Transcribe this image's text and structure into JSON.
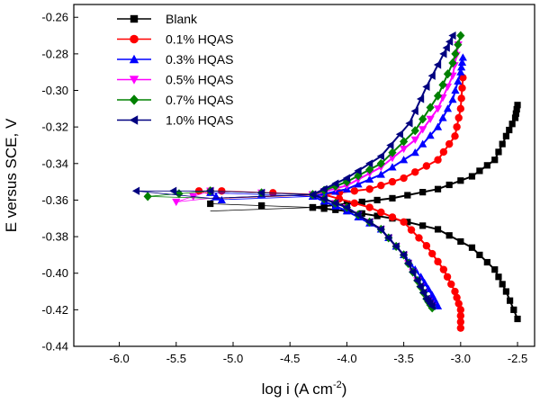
{
  "chart_data": {
    "type": "scatter",
    "xlabel_base": "log i (A cm",
    "xlabel_sup": "-2",
    "xlabel_end": ")",
    "ylabel": "E versus SCE,  V",
    "xlim": [
      -6.4,
      -2.35
    ],
    "ylim": [
      -0.44,
      -0.253
    ],
    "xticks": [
      "-6.0",
      "-5.5",
      "-5.0",
      "-4.5",
      "-4.0",
      "-3.5",
      "-3.0",
      "-2.5"
    ],
    "xtick_values": [
      -6.0,
      -5.5,
      -5.0,
      -4.5,
      -4.0,
      -3.5,
      -3.0,
      -2.5
    ],
    "yticks": [
      "-0.26",
      "-0.28",
      "-0.30",
      "-0.32",
      "-0.34",
      "-0.36",
      "-0.38",
      "-0.40",
      "-0.42",
      "-0.44"
    ],
    "ytick_values": [
      -0.26,
      -0.28,
      -0.3,
      -0.32,
      -0.34,
      -0.36,
      -0.38,
      -0.4,
      -0.42,
      -0.44
    ],
    "grid": false,
    "legend_position": "top-left",
    "series": [
      {
        "name": "Blank",
        "color": "#000000",
        "marker": "square",
        "ecorr": -0.364,
        "corner": [
          -4.3,
          -0.364
        ],
        "anodic": [
          [
            -4.3,
            -0.364
          ],
          [
            -4.0,
            -0.362
          ],
          [
            -3.6,
            -0.359
          ],
          [
            -3.2,
            -0.354
          ],
          [
            -2.9,
            -0.347
          ],
          [
            -2.7,
            -0.338
          ],
          [
            -2.6,
            -0.325
          ],
          [
            -2.52,
            -0.315
          ],
          [
            -2.5,
            -0.308
          ]
        ],
        "cathodic": [
          [
            -4.3,
            -0.364
          ],
          [
            -4.0,
            -0.366
          ],
          [
            -3.6,
            -0.37
          ],
          [
            -3.2,
            -0.376
          ],
          [
            -2.9,
            -0.386
          ],
          [
            -2.7,
            -0.398
          ],
          [
            -2.6,
            -0.41
          ],
          [
            -2.5,
            -0.425
          ]
        ]
      },
      {
        "name": "0.1% HQAS",
        "color": "#ff0000",
        "marker": "circle",
        "ecorr": -0.357,
        "corner": [
          -5.3,
          -0.355
        ],
        "anodic": [
          [
            -4.2,
            -0.357
          ],
          [
            -3.8,
            -0.354
          ],
          [
            -3.5,
            -0.348
          ],
          [
            -3.2,
            -0.338
          ],
          [
            -3.05,
            -0.325
          ],
          [
            -3.0,
            -0.31
          ],
          [
            -2.98,
            -0.293
          ]
        ],
        "cathodic": [
          [
            -4.2,
            -0.357
          ],
          [
            -3.8,
            -0.364
          ],
          [
            -3.5,
            -0.372
          ],
          [
            -3.3,
            -0.385
          ],
          [
            -3.15,
            -0.398
          ],
          [
            -3.05,
            -0.41
          ],
          [
            -3.0,
            -0.42
          ],
          [
            -3.0,
            -0.43
          ]
        ]
      },
      {
        "name": "0.3% HQAS",
        "color": "#0000ff",
        "marker": "triangle-up",
        "ecorr": -0.358,
        "corner": [
          -5.1,
          -0.36
        ],
        "anodic": [
          [
            -4.3,
            -0.358
          ],
          [
            -4.0,
            -0.354
          ],
          [
            -3.7,
            -0.346
          ],
          [
            -3.4,
            -0.334
          ],
          [
            -3.2,
            -0.32
          ],
          [
            -3.07,
            -0.305
          ],
          [
            -3.0,
            -0.29
          ],
          [
            -2.98,
            -0.282
          ]
        ],
        "cathodic": [
          [
            -4.3,
            -0.358
          ],
          [
            -4.0,
            -0.366
          ],
          [
            -3.7,
            -0.376
          ],
          [
            -3.5,
            -0.39
          ],
          [
            -3.35,
            -0.402
          ],
          [
            -3.25,
            -0.412
          ],
          [
            -3.2,
            -0.418
          ]
        ]
      },
      {
        "name": "0.5% HQAS",
        "color": "#ff00ff",
        "marker": "triangle-down",
        "ecorr": -0.357,
        "corner": [
          -5.5,
          -0.361
        ],
        "anodic": [
          [
            -4.3,
            -0.357
          ],
          [
            -4.0,
            -0.352
          ],
          [
            -3.7,
            -0.342
          ],
          [
            -3.4,
            -0.327
          ],
          [
            -3.2,
            -0.31
          ],
          [
            -3.07,
            -0.292
          ],
          [
            -3.02,
            -0.275
          ]
        ],
        "cathodic": [
          [
            -4.3,
            -0.357
          ],
          [
            -4.0,
            -0.364
          ],
          [
            -3.7,
            -0.376
          ],
          [
            -3.5,
            -0.39
          ],
          [
            -3.38,
            -0.404
          ],
          [
            -3.3,
            -0.414
          ],
          [
            -3.25,
            -0.418
          ]
        ]
      },
      {
        "name": "0.7% HQAS",
        "color": "#008000",
        "marker": "diamond",
        "ecorr": -0.357,
        "corner": [
          -5.75,
          -0.358
        ],
        "anodic": [
          [
            -4.3,
            -0.357
          ],
          [
            -4.0,
            -0.35
          ],
          [
            -3.7,
            -0.34
          ],
          [
            -3.4,
            -0.322
          ],
          [
            -3.2,
            -0.303
          ],
          [
            -3.07,
            -0.285
          ],
          [
            -3.0,
            -0.27
          ]
        ],
        "cathodic": [
          [
            -4.3,
            -0.357
          ],
          [
            -4.0,
            -0.364
          ],
          [
            -3.7,
            -0.376
          ],
          [
            -3.5,
            -0.39
          ],
          [
            -3.38,
            -0.404
          ],
          [
            -3.3,
            -0.414
          ],
          [
            -3.25,
            -0.419
          ]
        ]
      },
      {
        "name": "1.0% HQAS",
        "color": "#000080",
        "marker": "triangle-left",
        "ecorr": -0.357,
        "corner": [
          -5.85,
          -0.355
        ],
        "anodic": [
          [
            -4.3,
            -0.357
          ],
          [
            -4.0,
            -0.348
          ],
          [
            -3.7,
            -0.336
          ],
          [
            -3.45,
            -0.318
          ],
          [
            -3.3,
            -0.298
          ],
          [
            -3.15,
            -0.28
          ],
          [
            -3.07,
            -0.27
          ]
        ],
        "cathodic": [
          [
            -4.3,
            -0.357
          ],
          [
            -4.0,
            -0.364
          ],
          [
            -3.7,
            -0.376
          ],
          [
            -3.5,
            -0.39
          ],
          [
            -3.38,
            -0.404
          ],
          [
            -3.3,
            -0.414
          ],
          [
            -3.25,
            -0.418
          ]
        ]
      }
    ]
  }
}
